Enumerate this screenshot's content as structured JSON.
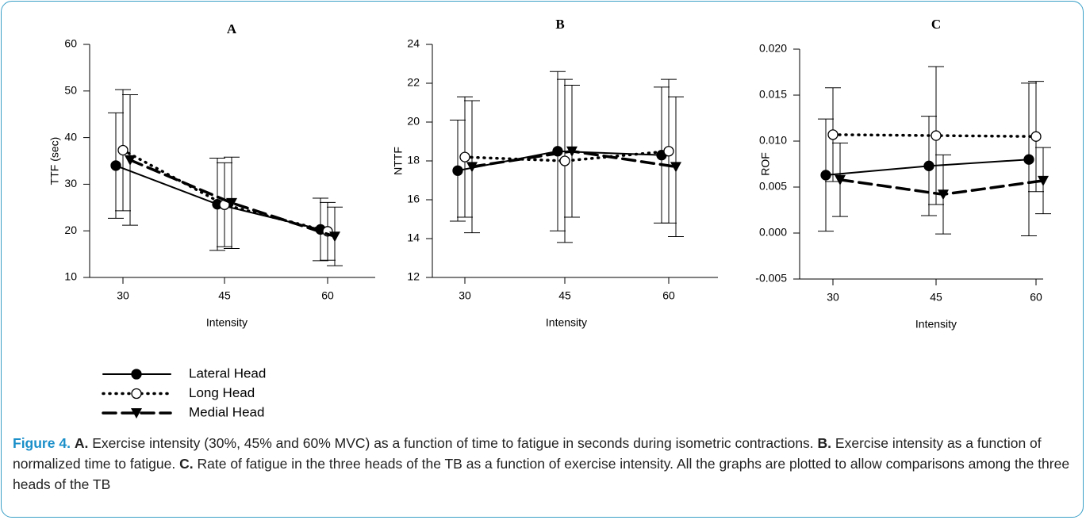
{
  "chart_data": [
    {
      "type": "line",
      "title": "A",
      "x_label": "Intensity",
      "y_label": "TTF (sec)",
      "categories": [
        "30",
        "45",
        "60"
      ],
      "ylim": [
        10,
        60
      ],
      "yticks": [
        10,
        20,
        30,
        40,
        50,
        60
      ],
      "series": [
        {
          "name": "Lateral Head",
          "color": "#000000",
          "line_style": "solid",
          "marker": "filled-circle",
          "values": [
            34,
            25.7,
            20.3
          ],
          "errors": [
            11.3,
            9.9,
            6.7
          ]
        },
        {
          "name": "Long Head",
          "color": "#000000",
          "line_style": "dotted",
          "marker": "open-circle",
          "values": [
            37.3,
            25.6,
            19.9
          ],
          "errors": [
            13,
            9,
            6.2
          ]
        },
        {
          "name": "Medial Head",
          "color": "#000000",
          "line_style": "dashed",
          "marker": "triangle-down",
          "values": [
            35.2,
            26,
            18.8
          ],
          "errors": [
            14,
            9.8,
            6.3
          ]
        }
      ]
    },
    {
      "type": "line",
      "title": "B",
      "x_label": "Intensity",
      "y_label": "NTTF",
      "categories": [
        "30",
        "45",
        "60"
      ],
      "ylim": [
        12,
        24
      ],
      "yticks": [
        12,
        14,
        16,
        18,
        20,
        22,
        24
      ],
      "series": [
        {
          "name": "Lateral Head",
          "color": "#000000",
          "line_style": "solid",
          "marker": "filled-circle",
          "values": [
            17.5,
            18.5,
            18.3
          ],
          "errors": [
            2.6,
            4.1,
            3.5
          ]
        },
        {
          "name": "Long Head",
          "color": "#000000",
          "line_style": "dotted",
          "marker": "open-circle",
          "values": [
            18.2,
            18,
            18.5
          ],
          "errors": [
            3.1,
            4.2,
            3.7
          ]
        },
        {
          "name": "Medial Head",
          "color": "#000000",
          "line_style": "dashed",
          "marker": "triangle-down",
          "values": [
            17.7,
            18.5,
            17.7
          ],
          "errors": [
            3.4,
            3.4,
            3.6
          ]
        }
      ]
    },
    {
      "type": "line",
      "title": "C",
      "x_label": "Intensity",
      "y_label": "ROF",
      "categories": [
        "30",
        "45",
        "60"
      ],
      "ylim": [
        -0.005,
        0.02
      ],
      "yticks": [
        {
          "value": -0.005,
          "label": "-0.005"
        },
        {
          "value": 0,
          "label": "0.000"
        },
        {
          "value": 0.005,
          "label": "0.005"
        },
        {
          "value": 0.01,
          "label": "0.010"
        },
        {
          "value": 0.015,
          "label": "0.015"
        },
        {
          "value": 0.02,
          "label": "0.020"
        }
      ],
      "series": [
        {
          "name": "Lateral Head",
          "color": "#000000",
          "line_style": "solid",
          "marker": "filled-circle",
          "values": [
            0.0063,
            0.0073,
            0.008
          ],
          "errors": [
            0.0061,
            0.0054,
            0.0083
          ]
        },
        {
          "name": "Long Head",
          "color": "#000000",
          "line_style": "dotted",
          "marker": "open-circle",
          "values": [
            0.0107,
            0.0106,
            0.0105
          ],
          "errors": [
            0.0051,
            0.0075,
            0.006
          ]
        },
        {
          "name": "Medial Head",
          "color": "#000000",
          "line_style": "dashed",
          "marker": "triangle-down",
          "values": [
            0.0058,
            0.0042,
            0.0057
          ],
          "errors": [
            0.004,
            0.0043,
            0.0036
          ]
        }
      ]
    }
  ],
  "caption": {
    "label": "Figure 4.",
    "parts": [
      {
        "key": "A.",
        "text": "Exercise intensity (30%, 45% and 60% MVC) as a function of time to fatigue in seconds during isometric contractions."
      },
      {
        "key": "B.",
        "text": "Exercise intensity as a function of normalized time to fatigue."
      },
      {
        "key": "C.",
        "text": "Rate of fatigue in the three heads of the TB as a function of exercise intensity. All the graphs are plotted to allow comparisons among the three heads of the TB"
      }
    ]
  }
}
